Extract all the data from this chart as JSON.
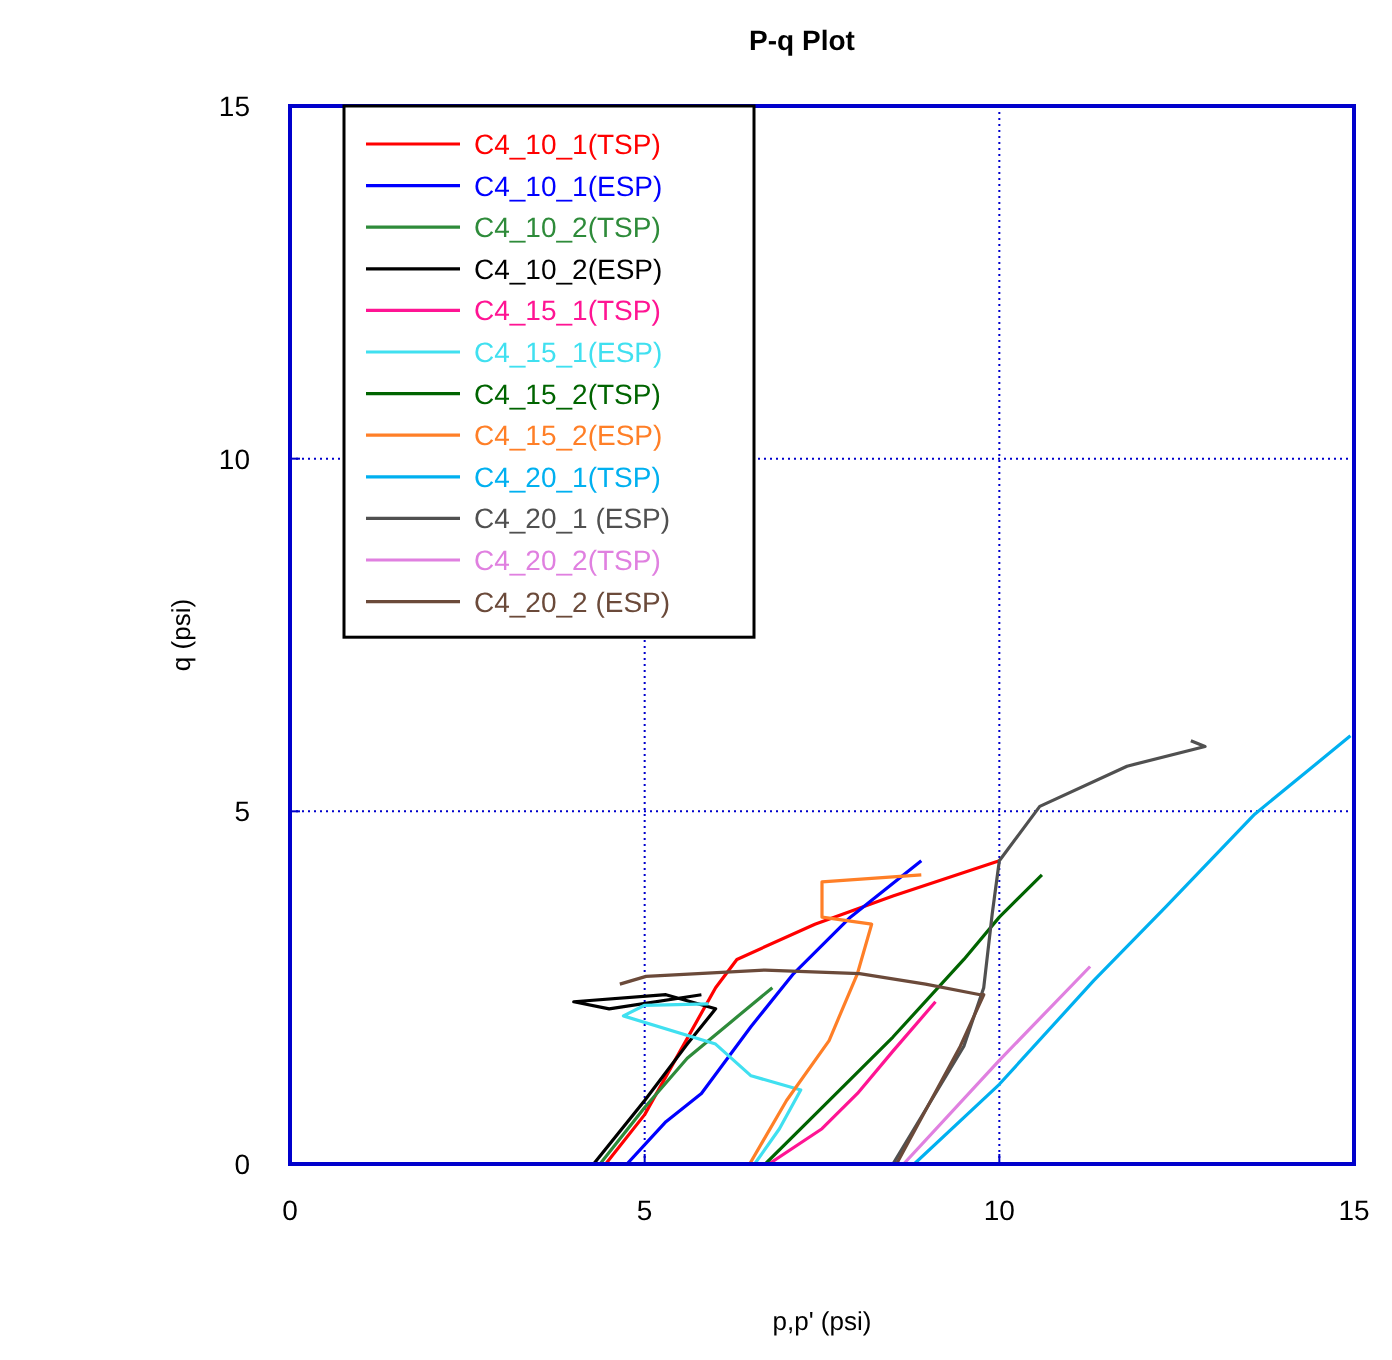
{
  "chart_data": {
    "type": "line",
    "title": "P-q Plot",
    "xlabel": "p,p' (psi)",
    "ylabel": "q (psi)",
    "xlim": [
      0,
      15
    ],
    "ylim": [
      0,
      15
    ],
    "xticks": [
      0,
      5,
      10,
      15
    ],
    "yticks": [
      0,
      5,
      10,
      15
    ],
    "grid": true,
    "legend": "top left",
    "marker": "none",
    "line_style": "solid",
    "series": [
      {
        "name": "C4_10_1(TSP)",
        "color": "#ff0000",
        "x": [
          4.45,
          5.0,
          5.5,
          6.0,
          6.3,
          7.4,
          8.5,
          10.0
        ],
        "values": [
          0,
          0.7,
          1.6,
          2.5,
          2.9,
          3.4,
          3.8,
          4.3
        ]
      },
      {
        "name": "C4_10_1(ESP)",
        "color": "#0000ff",
        "x": [
          4.75,
          5.3,
          5.8,
          6.5,
          7.1,
          7.9,
          8.9
        ],
        "values": [
          0,
          0.6,
          1.0,
          1.95,
          2.7,
          3.5,
          4.3
        ]
      },
      {
        "name": "C4_10_2(TSP)",
        "color": "#2e8b3a",
        "x": [
          4.37,
          5.0,
          5.6,
          6.2,
          6.8
        ],
        "values": [
          0,
          0.8,
          1.5,
          2.0,
          2.5
        ]
      },
      {
        "name": "C4_10_2(ESP)",
        "color": "#000000",
        "x": [
          4.28,
          5.0,
          5.6,
          6.0,
          5.3,
          4.0,
          4.5,
          5.8
        ],
        "values": [
          0,
          0.9,
          1.7,
          2.2,
          2.4,
          2.3,
          2.2,
          2.4
        ]
      },
      {
        "name": "C4_15_1(TSP)",
        "color": "#ff1493",
        "x": [
          6.75,
          7.5,
          8.0,
          8.5,
          9.1
        ],
        "values": [
          0,
          0.5,
          1.0,
          1.6,
          2.3
        ]
      },
      {
        "name": "C4_15_1(ESP)",
        "color": "#40e0f0",
        "x": [
          6.55,
          6.9,
          7.2,
          6.5,
          6.0,
          4.7,
          5.0,
          5.9
        ],
        "values": [
          0,
          0.5,
          1.05,
          1.25,
          1.7,
          2.1,
          2.25,
          2.27
        ]
      },
      {
        "name": "C4_15_2(TSP)",
        "color": "#006400",
        "x": [
          6.7,
          7.5,
          8.5,
          9.5,
          10.0,
          10.6
        ],
        "values": [
          0,
          0.8,
          1.8,
          2.9,
          3.5,
          4.1
        ]
      },
      {
        "name": "C4_15_2(ESP)",
        "color": "#ff7f27",
        "x": [
          6.48,
          7.0,
          7.6,
          8.0,
          8.2,
          7.5,
          7.5,
          8.9
        ],
        "values": [
          0,
          0.9,
          1.75,
          2.7,
          3.4,
          3.5,
          4.0,
          4.1
        ]
      },
      {
        "name": "C4_20_1(TSP)",
        "color": "#00b0f0",
        "x": [
          8.8,
          10.0,
          11.33,
          12.35,
          13.6,
          14.95
        ],
        "values": [
          0,
          1.13,
          2.6,
          3.65,
          4.96,
          6.07
        ]
      },
      {
        "name": "C4_20_1 (ESP)",
        "color": "#505050",
        "x": [
          8.5,
          9.5,
          9.78,
          9.9,
          10.0,
          10.57,
          11.8,
          12.9,
          12.7
        ],
        "values": [
          0,
          1.67,
          2.5,
          3.55,
          4.3,
          5.07,
          5.64,
          5.92,
          6.0
        ]
      },
      {
        "name": "C4_20_2(TSP)",
        "color": "#e080e0",
        "x": [
          8.65,
          10.0,
          11.28
        ],
        "values": [
          0,
          1.47,
          2.8
        ]
      },
      {
        "name": "C4_20_2 (ESP)",
        "color": "#6b4a3a",
        "x": [
          8.55,
          9.45,
          9.78,
          9.73,
          8.96,
          8.03,
          6.7,
          5.02,
          4.65
        ],
        "values": [
          0,
          1.67,
          2.4,
          2.4,
          2.55,
          2.7,
          2.75,
          2.66,
          2.55
        ]
      }
    ]
  }
}
